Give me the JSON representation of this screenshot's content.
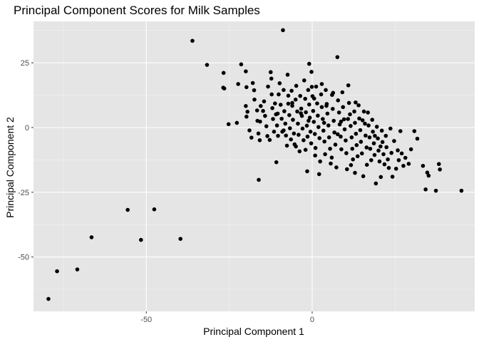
{
  "chart_data": {
    "type": "scatter",
    "title": "Principal Component Scores for Milk Samples",
    "xlabel": "Principal Component 1",
    "ylabel": "Principal Component 2",
    "xlim": [
      -84,
      49
    ],
    "ylim": [
      -71,
      41
    ],
    "x_ticks": [
      -50,
      0
    ],
    "x_tick_labels": [
      "-50",
      "0"
    ],
    "y_ticks": [
      -50,
      -25,
      0,
      25
    ],
    "y_tick_labels": [
      "-50",
      "-25",
      "0",
      "25"
    ],
    "grid": true,
    "legend": "none",
    "colors": {
      "panel": "#e5e5e5",
      "grid_major": "#ffffff",
      "grid_minor": "#f2f2f2",
      "point": "#000000",
      "tick": "#4d4d4d"
    },
    "points": [
      [
        -79.5,
        -66.2
      ],
      [
        -76.9,
        -55.5
      ],
      [
        -70.8,
        -54.8
      ],
      [
        -66.5,
        -42.4
      ],
      [
        -55.6,
        -31.8
      ],
      [
        -51.6,
        -43.4
      ],
      [
        -47.6,
        -31.6
      ],
      [
        -39.7,
        -43.0
      ],
      [
        -36.1,
        33.5
      ],
      [
        -31.7,
        24.2
      ],
      [
        -26.7,
        21.1
      ],
      [
        -26.8,
        15.4
      ],
      [
        -26.5,
        15.1
      ],
      [
        -25.2,
        1.3
      ],
      [
        -22.7,
        1.8
      ],
      [
        -22.3,
        16.8
      ],
      [
        -21.4,
        24.4
      ],
      [
        -20.0,
        21.7
      ],
      [
        -19.8,
        15.6
      ],
      [
        -20.0,
        8.3
      ],
      [
        -19.5,
        6.1
      ],
      [
        -19.8,
        4.2
      ],
      [
        -18.9,
        -1.1
      ],
      [
        -18.3,
        -3.9
      ],
      [
        -17.9,
        17.2
      ],
      [
        -17.5,
        14.4
      ],
      [
        -17.4,
        10.8
      ],
      [
        -16.6,
        6.6
      ],
      [
        -16.5,
        2.6
      ],
      [
        -16.2,
        -2.3
      ],
      [
        -15.8,
        -4.9
      ],
      [
        -15.5,
        8.3
      ],
      [
        -15.7,
        2.3
      ],
      [
        -16.1,
        -20.2
      ],
      [
        -14.8,
        6.4
      ],
      [
        -14.2,
        4.5
      ],
      [
        -13.8,
        0.5
      ],
      [
        -13.5,
        -3.3
      ],
      [
        -13.3,
        15.8
      ],
      [
        -12.5,
        21.4
      ],
      [
        -12.3,
        18.9
      ],
      [
        -12.2,
        12.8
      ],
      [
        -12.0,
        7.5
      ],
      [
        -11.8,
        3.3
      ],
      [
        -11.5,
        -1.6
      ],
      [
        -11.2,
        9.3
      ],
      [
        -10.9,
        5.1
      ],
      [
        -10.6,
        0.8
      ],
      [
        -10.3,
        -3.2
      ],
      [
        -10.8,
        -13.4
      ],
      [
        -10.1,
        12.8
      ],
      [
        -9.8,
        17.1
      ],
      [
        -9.5,
        8.8
      ],
      [
        -9.2,
        3.4
      ],
      [
        -9.0,
        -1.6
      ],
      [
        -8.8,
        37.6
      ],
      [
        -8.6,
        14.5
      ],
      [
        -8.4,
        6.3
      ],
      [
        -8.1,
        1.5
      ],
      [
        -7.9,
        -3.1
      ],
      [
        -7.6,
        -7.0
      ],
      [
        -7.4,
        20.4
      ],
      [
        -7.2,
        9.2
      ],
      [
        -6.9,
        4.8
      ],
      [
        -6.7,
        -0.3
      ],
      [
        -6.4,
        -4.6
      ],
      [
        -6.2,
        14.2
      ],
      [
        -6.0,
        8.4
      ],
      [
        -5.8,
        3.0
      ],
      [
        -5.5,
        -2.3
      ],
      [
        -5.3,
        -6.5
      ],
      [
        -5.0,
        10.8
      ],
      [
        -4.8,
        16.1
      ],
      [
        -4.5,
        6.2
      ],
      [
        -4.3,
        1.5
      ],
      [
        -4.1,
        -2.8
      ],
      [
        -3.8,
        -9.2
      ],
      [
        -3.6,
        12.2
      ],
      [
        -3.3,
        7.3
      ],
      [
        -3.1,
        4.5
      ],
      [
        -2.9,
        -0.4
      ],
      [
        -2.6,
        -4.9
      ],
      [
        -2.4,
        18.2
      ],
      [
        -2.1,
        11.1
      ],
      [
        -1.9,
        5.9
      ],
      [
        -1.6,
        0.7
      ],
      [
        -1.4,
        -3.5
      ],
      [
        -1.5,
        -16.9
      ],
      [
        -1.2,
        14.5
      ],
      [
        -0.9,
        8.9
      ],
      [
        -0.7,
        3.8
      ],
      [
        -0.5,
        -1.6
      ],
      [
        -0.3,
        -6.1
      ],
      [
        -0.9,
        24.6
      ],
      [
        -0.2,
        21.5
      ],
      [
        0.1,
        12.1
      ],
      [
        0.3,
        6.4
      ],
      [
        0.5,
        2.2
      ],
      [
        0.8,
        -2.5
      ],
      [
        1.0,
        -7.9
      ],
      [
        1.2,
        15.8
      ],
      [
        1.5,
        9.3
      ],
      [
        1.7,
        4.6
      ],
      [
        1.9,
        0.2
      ],
      [
        2.2,
        -4.1
      ],
      [
        2.4,
        -13.1
      ],
      [
        2.1,
        -18.0
      ],
      [
        2.7,
        12.8
      ],
      [
        2.9,
        7.9
      ],
      [
        3.2,
        3.3
      ],
      [
        3.4,
        -1.2
      ],
      [
        3.7,
        -5.4
      ],
      [
        3.9,
        -10.3
      ],
      [
        4.1,
        14.5
      ],
      [
        4.4,
        9.1
      ],
      [
        4.6,
        5.4
      ],
      [
        4.9,
        0.8
      ],
      [
        5.1,
        -3.8
      ],
      [
        5.4,
        -8.2
      ],
      [
        5.6,
        -13.9
      ],
      [
        6.0,
        12.6
      ],
      [
        6.2,
        7.2
      ],
      [
        6.5,
        2.6
      ],
      [
        6.7,
        -1.9
      ],
      [
        7.0,
        -6.6
      ],
      [
        7.3,
        -15.4
      ],
      [
        7.6,
        27.2
      ],
      [
        7.8,
        10.5
      ],
      [
        8.1,
        5.8
      ],
      [
        8.3,
        1.2
      ],
      [
        8.6,
        -3.5
      ],
      [
        8.8,
        -8.4
      ],
      [
        9.1,
        13.6
      ],
      [
        9.3,
        7.9
      ],
      [
        9.6,
        3.2
      ],
      [
        9.8,
        -0.7
      ],
      [
        10.1,
        -5.0
      ],
      [
        10.3,
        -9.9
      ],
      [
        10.5,
        -16.1
      ],
      [
        10.9,
        16.3
      ],
      [
        11.1,
        9.5
      ],
      [
        11.4,
        5.1
      ],
      [
        11.6,
        0.6
      ],
      [
        11.9,
        -3.8
      ],
      [
        12.1,
        -8.2
      ],
      [
        12.3,
        -12.3
      ],
      [
        12.7,
        6.2
      ],
      [
        12.9,
        1.8
      ],
      [
        13.2,
        -2.4
      ],
      [
        13.4,
        -6.8
      ],
      [
        13.7,
        -11.1
      ],
      [
        14.0,
        8.6
      ],
      [
        14.2,
        3.5
      ],
      [
        14.5,
        -1.0
      ],
      [
        14.7,
        -5.5
      ],
      [
        15.0,
        -10.0
      ],
      [
        15.4,
        -18.8
      ],
      [
        15.6,
        6.2
      ],
      [
        15.9,
        1.5
      ],
      [
        16.1,
        -3.1
      ],
      [
        16.4,
        -7.7
      ],
      [
        16.8,
        5.8
      ],
      [
        17.0,
        0.8
      ],
      [
        17.3,
        -3.8
      ],
      [
        17.5,
        -8.2
      ],
      [
        17.8,
        -12.6
      ],
      [
        18.1,
        3.0
      ],
      [
        18.3,
        -1.6
      ],
      [
        18.6,
        -6.1
      ],
      [
        18.8,
        -10.6
      ],
      [
        19.2,
        -21.6
      ],
      [
        19.5,
        0.3
      ],
      [
        19.8,
        -4.2
      ],
      [
        20.0,
        -8.9
      ],
      [
        20.3,
        -13.1
      ],
      [
        20.7,
        -19.1
      ],
      [
        21.0,
        -1.2
      ],
      [
        21.2,
        -5.6
      ],
      [
        21.5,
        -10.3
      ],
      [
        21.8,
        -14.2
      ],
      [
        22.2,
        -3.2
      ],
      [
        22.4,
        -7.6
      ],
      [
        22.8,
        -12.3
      ],
      [
        23.1,
        -15.6
      ],
      [
        23.6,
        -0.4
      ],
      [
        23.9,
        -9.8
      ],
      [
        24.2,
        -19.0
      ],
      [
        24.7,
        -5.2
      ],
      [
        25.3,
        -15.9
      ],
      [
        25.8,
        -8.8
      ],
      [
        26.1,
        -12.6
      ],
      [
        26.6,
        -1.4
      ],
      [
        27.0,
        -10.0
      ],
      [
        27.5,
        -14.8
      ],
      [
        28.1,
        -11.7
      ],
      [
        29.1,
        -14.0
      ],
      [
        29.8,
        -8.4
      ],
      [
        30.8,
        -1.4
      ],
      [
        31.7,
        -4.3
      ],
      [
        33.4,
        -14.8
      ],
      [
        34.2,
        -23.9
      ],
      [
        34.7,
        -17.4
      ],
      [
        35.1,
        -18.6
      ],
      [
        37.3,
        -24.4
      ],
      [
        38.2,
        -14.1
      ],
      [
        38.5,
        -16.2
      ],
      [
        45.0,
        -24.4
      ],
      [
        -3.4,
        5.5
      ],
      [
        0.6,
        11.2
      ],
      [
        4.3,
        8.4
      ],
      [
        -7.2,
        12.3
      ],
      [
        2.9,
        16.8
      ],
      [
        6.3,
        13.4
      ],
      [
        -10.4,
        5.4
      ],
      [
        8.7,
        2.3
      ],
      [
        -2.0,
        -8.6
      ],
      [
        5.9,
        -11.6
      ],
      [
        11.7,
        -14.5
      ],
      [
        -12.8,
        -4.8
      ],
      [
        13.1,
        9.7
      ],
      [
        -4.9,
        -7.3
      ],
      [
        16.5,
        -14.4
      ],
      [
        0.9,
        -10.8
      ],
      [
        -8.6,
        -1.1
      ],
      [
        3.6,
        1.8
      ],
      [
        7.7,
        -2.6
      ],
      [
        -1.1,
        2.6
      ],
      [
        10.8,
        3.3
      ],
      [
        -6.0,
        9.5
      ],
      [
        15.2,
        2.8
      ],
      [
        -14.5,
        10.1
      ],
      [
        18.9,
        -3.2
      ],
      [
        -0.1,
        15.7
      ],
      [
        12.9,
        -17.5
      ],
      [
        20.6,
        -7.3
      ]
    ]
  }
}
